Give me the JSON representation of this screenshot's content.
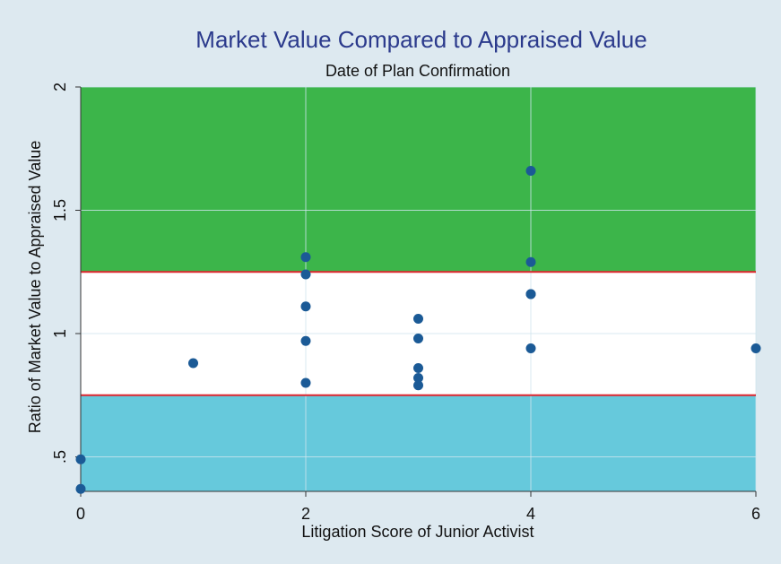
{
  "chart_data": {
    "type": "scatter",
    "title": "Market Value Compared to Appraised Value",
    "subtitle": "Date of Plan Confirmation",
    "x_label": "Litigation Score of Junior Activist",
    "y_label": "Ratio of Market Value to Appraised Value",
    "x": [
      0,
      0,
      1,
      2,
      2,
      2,
      2,
      2,
      3,
      3,
      3,
      3,
      3,
      4,
      4,
      4,
      4,
      4,
      6
    ],
    "values": [
      0.49,
      0.37,
      0.88,
      1.31,
      1.24,
      1.11,
      0.97,
      0.8,
      1.06,
      0.98,
      0.86,
      0.82,
      0.79,
      1.66,
      1.29,
      1.16,
      1.16,
      0.94,
      0.94
    ],
    "color": "#1b5a96",
    "xlim": [
      0,
      6
    ],
    "xticks": [
      0,
      2,
      4,
      6
    ],
    "ylim": [
      0.36,
      2
    ],
    "yticks": [
      {
        "value": 0.5,
        "label": ".5"
      },
      1,
      1.5,
      2
    ],
    "grid": true,
    "bands": [
      {
        "from": 1.25,
        "to": 2,
        "color": "#3cb54a"
      },
      {
        "from": 0.75,
        "to": 1.25,
        "color": "#ffffff"
      },
      {
        "from": 0.36,
        "to": 0.75,
        "color": "#66c9dc"
      }
    ],
    "hlines": [
      {
        "value": 1.25,
        "color": "#e0262f"
      },
      {
        "value": 0.75,
        "color": "#e0262f"
      }
    ]
  }
}
